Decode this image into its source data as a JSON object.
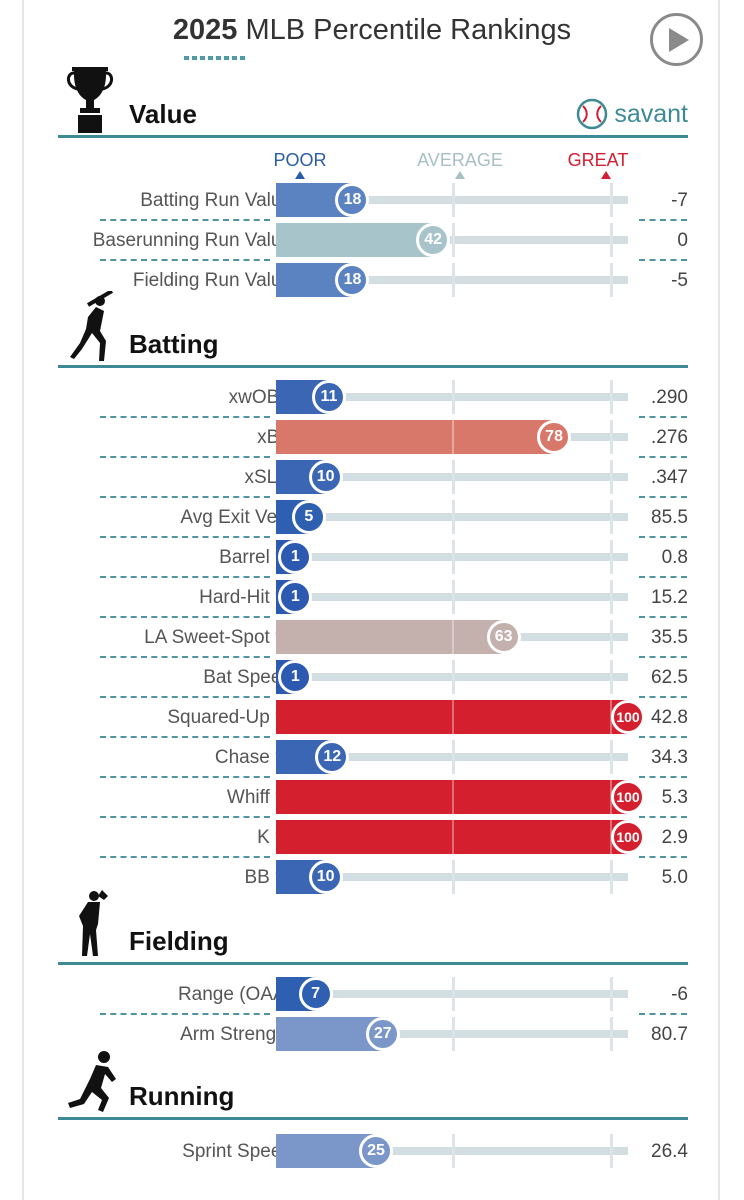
{
  "title": {
    "year": "2025",
    "rest": "MLB Percentile Rankings"
  },
  "brand": {
    "name": "savant"
  },
  "scale": {
    "poor": "POOR",
    "average": "AVERAGE",
    "great": "GREAT",
    "poor_color": "#2b5da6",
    "average_color": "#a7c0c6",
    "great_color": "#d22030"
  },
  "sections": {
    "value": {
      "name": "Value",
      "rows": [
        {
          "label": "Batting Run Value",
          "pct": 18,
          "value": "-7",
          "color": "#5b82c1",
          "badge": "#5b82c1"
        },
        {
          "label": "Baserunning Run Value",
          "pct": 42,
          "value": "0",
          "color": "#a8c4cb",
          "badge": "#a8c4cb"
        },
        {
          "label": "Fielding Run Value",
          "pct": 18,
          "value": "-5",
          "color": "#5b82c1",
          "badge": "#5b82c1"
        }
      ]
    },
    "batting": {
      "name": "Batting",
      "rows": [
        {
          "label": "xwOBA",
          "pct": 11,
          "value": ".290",
          "color": "#3a66b3",
          "badge": "#3a66b3"
        },
        {
          "label": "xBA",
          "pct": 78,
          "value": ".276",
          "color": "#d8786a",
          "badge": "#d8786a"
        },
        {
          "label": "xSLG",
          "pct": 10,
          "value": ".347",
          "color": "#3a66b3",
          "badge": "#3a66b3"
        },
        {
          "label": "Avg Exit Velo",
          "pct": 5,
          "value": "85.5",
          "color": "#2f5fb0",
          "badge": "#2f5fb0"
        },
        {
          "label": "Barrel %",
          "pct": 1,
          "value": "0.8",
          "color": "#2b5ab0",
          "badge": "#2b5ab0"
        },
        {
          "label": "Hard-Hit %",
          "pct": 1,
          "value": "15.2",
          "color": "#2b5ab0",
          "badge": "#2b5ab0"
        },
        {
          "label": "LA Sweet-Spot %",
          "pct": 63,
          "value": "35.5",
          "color": "#c4b0ac",
          "badge": "#c4b0ac"
        },
        {
          "label": "Bat Speed",
          "pct": 1,
          "value": "62.5",
          "color": "#2b5ab0",
          "badge": "#2b5ab0"
        },
        {
          "label": "Squared-Up %",
          "pct": 100,
          "value": "42.8",
          "color": "#d4202e",
          "badge": "#d4202e"
        },
        {
          "label": "Chase %",
          "pct": 12,
          "value": "34.3",
          "color": "#3a66b3",
          "badge": "#3a66b3"
        },
        {
          "label": "Whiff %",
          "pct": 100,
          "value": "5.3",
          "color": "#d4202e",
          "badge": "#d4202e"
        },
        {
          "label": "K %",
          "pct": 100,
          "value": "2.9",
          "color": "#d4202e",
          "badge": "#d4202e"
        },
        {
          "label": "BB %",
          "pct": 10,
          "value": "5.0",
          "color": "#3a66b3",
          "badge": "#3a66b3"
        }
      ]
    },
    "fielding": {
      "name": "Fielding",
      "rows": [
        {
          "label": "Range (OAA)",
          "pct": 7,
          "value": "-6",
          "color": "#2f5fb0",
          "badge": "#2f5fb0"
        },
        {
          "label": "Arm Strength",
          "pct": 27,
          "value": "80.7",
          "color": "#7b97c9",
          "badge": "#7b97c9"
        }
      ]
    },
    "running": {
      "name": "Running",
      "rows": [
        {
          "label": "Sprint Speed",
          "pct": 25,
          "value": "26.4",
          "color": "#7b97c9",
          "badge": "#7b97c9"
        }
      ]
    }
  }
}
